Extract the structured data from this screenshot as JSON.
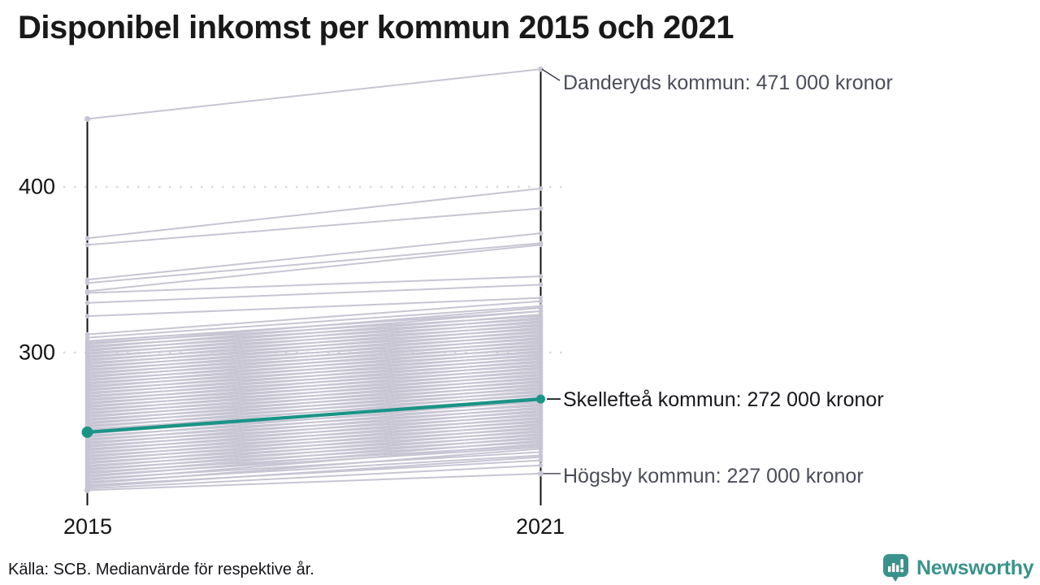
{
  "title": "Disponibel inkomst per kommun 2015 och 2021",
  "footer": {
    "source": "Källa: SCB. Medianvärde för respektive år."
  },
  "logo": {
    "name": "Newsworthy",
    "color": "#39938b",
    "icon": "bar-chart-speech-bubble-icon"
  },
  "colors": {
    "background_line": "#c7c5d3",
    "highlight": "#1a9487",
    "axis": "#101010",
    "gridline": "#d9d9dd",
    "muted_label": "#4b4e59",
    "dark_label": "#17181c"
  },
  "chart_data": {
    "type": "line",
    "subtype": "slope-chart",
    "x": [
      2015,
      2021
    ],
    "x_labels": [
      "2015",
      "2021"
    ],
    "y_ticks": [
      400,
      300
    ],
    "y_tick_labels": [
      "400",
      "300"
    ],
    "y_unit": "tusen kronor",
    "ylim": [
      210,
      480
    ],
    "grid": "dotted-horizontal",
    "highlight_series": {
      "name": "Skellefteå kommun",
      "values": [
        252,
        272
      ],
      "label": "Skellefteå kommun: 272 000 kronor"
    },
    "annotated_series": [
      {
        "name": "Danderyds kommun",
        "position": "top",
        "values": [
          441,
          471
        ],
        "label": "Danderyds kommun: 471 000 kronor"
      },
      {
        "name": "Högsby kommun",
        "position": "bottom",
        "values": [
          217,
          227
        ],
        "label": "Högsby kommun: 227 000 kronor"
      }
    ],
    "background_series": [
      [
        369,
        399
      ],
      [
        365,
        387
      ],
      [
        344,
        372
      ],
      [
        342,
        366
      ],
      [
        337,
        365
      ],
      [
        336,
        346
      ],
      [
        330,
        341
      ],
      [
        322,
        333
      ],
      [
        311,
        331
      ],
      [
        309,
        328
      ],
      [
        307,
        325
      ],
      [
        306,
        322
      ],
      [
        305,
        327
      ],
      [
        304,
        320
      ],
      [
        303,
        325
      ],
      [
        302,
        318
      ],
      [
        301,
        323
      ],
      [
        300,
        316
      ],
      [
        299,
        321
      ],
      [
        298,
        314
      ],
      [
        297,
        319
      ],
      [
        296,
        312
      ],
      [
        295,
        317
      ],
      [
        294,
        310
      ],
      [
        293,
        315
      ],
      [
        292,
        308
      ],
      [
        291,
        313
      ],
      [
        290,
        306
      ],
      [
        289,
        311
      ],
      [
        288,
        304
      ],
      [
        287,
        309
      ],
      [
        286,
        302
      ],
      [
        285,
        307
      ],
      [
        284,
        300
      ],
      [
        283,
        305
      ],
      [
        282,
        298
      ],
      [
        281,
        303
      ],
      [
        280,
        296
      ],
      [
        279,
        301
      ],
      [
        278,
        294
      ],
      [
        277,
        299
      ],
      [
        276,
        292
      ],
      [
        275,
        297
      ],
      [
        274,
        290
      ],
      [
        273,
        295
      ],
      [
        272,
        288
      ],
      [
        271,
        293
      ],
      [
        270,
        286
      ],
      [
        269,
        291
      ],
      [
        268,
        284
      ],
      [
        267,
        289
      ],
      [
        266,
        282
      ],
      [
        265,
        287
      ],
      [
        264,
        280
      ],
      [
        263,
        285
      ],
      [
        262,
        278
      ],
      [
        261,
        283
      ],
      [
        260,
        276
      ],
      [
        259,
        281
      ],
      [
        258,
        274
      ],
      [
        257,
        279
      ],
      [
        256,
        272
      ],
      [
        255,
        277
      ],
      [
        254,
        270
      ],
      [
        253,
        275
      ],
      [
        252,
        268
      ],
      [
        251,
        273
      ],
      [
        250,
        266
      ],
      [
        249,
        271
      ],
      [
        248,
        264
      ],
      [
        247,
        269
      ],
      [
        246,
        262
      ],
      [
        245,
        267
      ],
      [
        244,
        260
      ],
      [
        243,
        265
      ],
      [
        242,
        258
      ],
      [
        241,
        263
      ],
      [
        240,
        256
      ],
      [
        239,
        261
      ],
      [
        238,
        254
      ],
      [
        237,
        259
      ],
      [
        236,
        252
      ],
      [
        235,
        257
      ],
      [
        234,
        250
      ],
      [
        233,
        255
      ],
      [
        232,
        248
      ],
      [
        231,
        253
      ],
      [
        230,
        246
      ],
      [
        229,
        251
      ],
      [
        228,
        244
      ],
      [
        227,
        249
      ],
      [
        226,
        243
      ],
      [
        225,
        247
      ],
      [
        224,
        240
      ],
      [
        223,
        245
      ],
      [
        222,
        238
      ],
      [
        221,
        242
      ],
      [
        220,
        235
      ],
      [
        219,
        237
      ],
      [
        218,
        232
      ]
    ]
  }
}
